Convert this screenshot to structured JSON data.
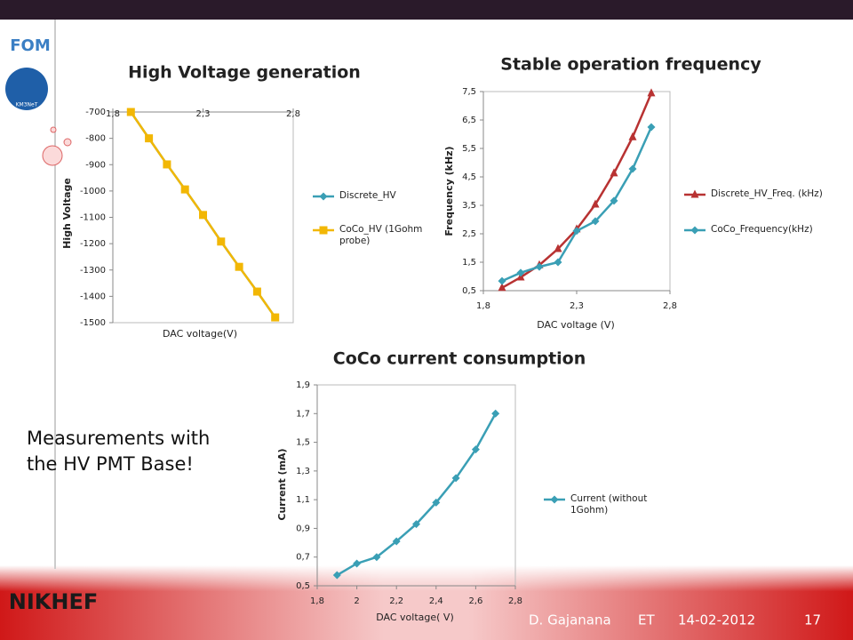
{
  "slide": {
    "logos": [
      "FOM",
      "KM3NeT",
      "NIKHEF"
    ],
    "note": [
      "Measurements with",
      "the HV PMT Base!"
    ],
    "footer": {
      "author": "D. Gajanana",
      "event": "ET",
      "date": "14-02-2012",
      "page": "17"
    }
  },
  "chart_data": [
    {
      "type": "line",
      "title": "High Voltage generation",
      "x_label": "DAC voltage(V)",
      "y_label": "High Voltage",
      "x": [
        1.9,
        2.0,
        2.1,
        2.2,
        2.3,
        2.4,
        2.5,
        2.6,
        2.7
      ],
      "series": [
        {
          "name": "Discrete_HV",
          "color": "#3a9fb5",
          "marker": "diamond",
          "values": [
            -700,
            -800,
            -899,
            -994,
            -1091,
            -1192,
            -1288,
            -1382,
            -1480
          ]
        },
        {
          "name": "CoCo_HV (1Gohm probe)",
          "color": "#f2b705",
          "marker": "square",
          "values": [
            -700,
            -800,
            -899,
            -994,
            -1091,
            -1192,
            -1288,
            -1382,
            -1480
          ]
        }
      ],
      "xlim": [
        1.8,
        2.8
      ],
      "xticks": [
        {
          "value": 1.8,
          "label": "1,8"
        },
        {
          "value": 2.3,
          "label": "2,3"
        },
        {
          "value": 2.8,
          "label": "2,8"
        }
      ],
      "ylim": [
        -1500,
        -700
      ],
      "yticks": [
        -700,
        -800,
        -900,
        -1000,
        -1100,
        -1200,
        -1300,
        -1400,
        -1500
      ],
      "x_axis_position": "top",
      "legend": "right"
    },
    {
      "type": "line",
      "title": "Stable operation frequency",
      "x_label": "DAC voltage (V)",
      "y_label": "Frequency (kHz)",
      "x": [
        1.9,
        2.0,
        2.1,
        2.2,
        2.3,
        2.4,
        2.5,
        2.6,
        2.7
      ],
      "series": [
        {
          "name": "Discrete_HV_Freq. (kHz)",
          "color": "#b83232",
          "marker": "triangle",
          "values": [
            0.6,
            0.97,
            1.4,
            1.97,
            2.66,
            3.53,
            4.63,
            5.9,
            7.44
          ]
        },
        {
          "name": "CoCo_Frequency(kHz)",
          "color": "#3a9fb5",
          "marker": "diamond",
          "values": [
            0.84,
            1.13,
            1.34,
            1.5,
            2.6,
            2.94,
            3.66,
            4.78,
            6.25
          ]
        }
      ],
      "xlim": [
        1.8,
        2.8
      ],
      "xticks": [
        {
          "value": 1.8,
          "label": "1,8"
        },
        {
          "value": 2.3,
          "label": "2,3"
        },
        {
          "value": 2.8,
          "label": "2,8"
        }
      ],
      "ylim": [
        0.5,
        7.5
      ],
      "yticks": [
        {
          "value": 0.5,
          "label": "0,5"
        },
        {
          "value": 1.5,
          "label": "1,5"
        },
        {
          "value": 2.5,
          "label": "2,5"
        },
        {
          "value": 3.5,
          "label": "3,5"
        },
        {
          "value": 4.5,
          "label": "4,5"
        },
        {
          "value": 5.5,
          "label": "5,5"
        },
        {
          "value": 6.5,
          "label": "6,5"
        },
        {
          "value": 7.5,
          "label": "7,5"
        }
      ],
      "x_axis_position": "bottom",
      "legend": "right"
    },
    {
      "type": "line",
      "title": "CoCo current consumption",
      "x_label": "DAC voltage( V)",
      "y_label": "Current (mA)",
      "x": [
        1.9,
        2.0,
        2.1,
        2.2,
        2.3,
        2.4,
        2.5,
        2.6,
        2.7
      ],
      "series": [
        {
          "name": "Current (without 1Gohm)",
          "color": "#3a9fb5",
          "marker": "diamond",
          "values": [
            0.574,
            0.655,
            0.7,
            0.81,
            0.93,
            1.08,
            1.25,
            1.45,
            1.7
          ]
        }
      ],
      "xlim": [
        1.8,
        2.8
      ],
      "xticks": [
        {
          "value": 1.8,
          "label": "1,8"
        },
        2,
        {
          "value": 2.2,
          "label": "2,2"
        },
        {
          "value": 2.4,
          "label": "2,4"
        },
        {
          "value": 2.6,
          "label": "2,6"
        },
        {
          "value": 2.8,
          "label": "2,8"
        }
      ],
      "ylim": [
        0.5,
        1.9
      ],
      "yticks": [
        {
          "value": 0.5,
          "label": "0,5"
        },
        {
          "value": 0.7,
          "label": "0,7"
        },
        {
          "value": 0.9,
          "label": "0,9"
        },
        {
          "value": 1.1,
          "label": "1,1"
        },
        {
          "value": 1.3,
          "label": "1,3"
        },
        {
          "value": 1.5,
          "label": "1,5"
        },
        {
          "value": 1.7,
          "label": "1,7"
        },
        {
          "value": 1.9,
          "label": "1,9"
        }
      ],
      "x_axis_position": "bottom",
      "legend": "right"
    }
  ]
}
